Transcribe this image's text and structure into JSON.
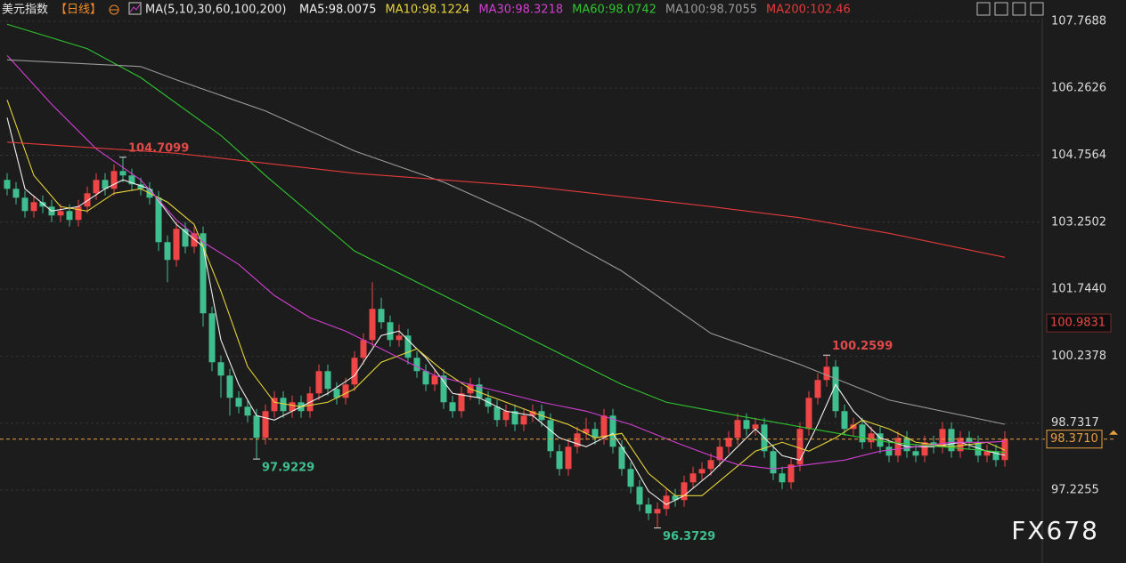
{
  "chart_data": {
    "type": "candlestick",
    "symbol": "美元指数",
    "period": "【日线】",
    "ma_group": "MA(5,10,30,60,100,200)",
    "watermark": "FX678",
    "up_color": "#ee4646",
    "down_color": "#3fbf8f",
    "ylim": [
      95.5855,
      108.2455
    ],
    "yticks": [
      107.7688,
      106.2626,
      104.7564,
      103.2502,
      {
        "value": 101.744,
        "label": "101.7440"
      },
      100.2378,
      98.7317,
      97.2255
    ],
    "grid": true,
    "open": [
      104.2,
      104.0,
      103.8,
      103.5,
      103.7,
      103.6,
      103.4,
      103.5,
      103.3,
      103.6,
      103.9,
      104.2,
      104.0,
      104.4,
      104.3,
      104.1,
      104.0,
      103.8,
      102.8,
      102.4,
      103.1,
      102.7,
      103.0,
      101.2,
      100.1,
      99.8,
      99.3,
      99.1,
      98.9,
      98.4,
      99.0,
      99.3,
      99.0,
      99.2,
      99.0,
      99.4,
      99.9,
      99.5,
      99.3,
      99.6,
      100.2,
      100.6,
      101.3,
      101.0,
      100.6,
      100.7,
      100.2,
      99.9,
      99.6,
      99.8,
      99.2,
      99.0,
      99.4,
      99.6,
      99.3,
      99.1,
      98.8,
      99.0,
      98.7,
      98.9,
      99.0,
      98.8,
      98.1,
      97.7,
      98.2,
      98.5,
      98.6,
      98.4,
      98.9,
      98.2,
      97.7,
      97.3,
      96.9,
      96.7,
      96.8,
      97.1,
      97.0,
      97.4,
      97.6,
      97.7,
      97.9,
      98.2,
      98.4,
      98.8,
      98.6,
      98.7,
      98.1,
      97.6,
      97.4,
      97.8,
      98.6,
      99.3,
      99.7,
      100.0,
      99.0,
      98.6,
      98.7,
      98.3,
      98.5,
      98.2,
      98.0,
      98.4,
      98.1,
      98.0,
      98.3,
      98.2,
      98.6,
      98.1,
      98.4,
      98.3,
      98.0,
      98.1,
      97.9
    ],
    "high": [
      104.35,
      104.15,
      103.95,
      103.85,
      103.85,
      103.75,
      103.65,
      103.65,
      103.75,
      104.05,
      104.35,
      104.35,
      104.55,
      104.7099,
      104.45,
      104.25,
      104.15,
      103.95,
      102.95,
      103.25,
      103.25,
      103.15,
      103.15,
      101.35,
      100.25,
      99.95,
      99.45,
      99.25,
      99.05,
      99.15,
      99.45,
      99.45,
      99.35,
      99.35,
      99.55,
      100.05,
      100.05,
      99.65,
      99.75,
      100.35,
      100.75,
      101.9,
      101.55,
      101.15,
      100.95,
      100.85,
      100.35,
      100.05,
      99.95,
      99.95,
      99.35,
      99.55,
      99.75,
      99.75,
      99.45,
      99.25,
      99.15,
      99.15,
      99.05,
      99.15,
      99.15,
      98.95,
      98.25,
      98.35,
      98.65,
      98.85,
      98.75,
      99.05,
      99.05,
      98.35,
      97.85,
      97.45,
      97.05,
      96.95,
      97.25,
      97.25,
      97.55,
      97.75,
      97.85,
      98.05,
      98.35,
      98.55,
      98.95,
      98.95,
      98.85,
      98.85,
      98.25,
      97.75,
      97.95,
      98.75,
      99.45,
      99.85,
      100.2599,
      100.15,
      99.15,
      98.85,
      98.85,
      98.65,
      98.65,
      98.35,
      98.55,
      98.55,
      98.25,
      98.45,
      98.45,
      98.75,
      98.75,
      98.55,
      98.55,
      98.45,
      98.25,
      98.25,
      98.55
    ],
    "low": [
      103.85,
      103.65,
      103.35,
      103.35,
      103.45,
      103.25,
      103.25,
      103.15,
      103.15,
      103.45,
      103.75,
      103.85,
      103.85,
      104.15,
      103.95,
      103.85,
      103.65,
      102.6,
      101.9,
      102.25,
      102.55,
      102.55,
      100.9,
      99.9,
      99.3,
      98.9,
      98.95,
      98.75,
      97.9229,
      98.25,
      98.85,
      98.85,
      98.85,
      98.85,
      98.85,
      99.25,
      99.35,
      99.15,
      99.15,
      99.45,
      100.05,
      100.45,
      100.85,
      100.45,
      100.45,
      100.05,
      99.75,
      99.45,
      99.45,
      99.05,
      98.85,
      98.85,
      99.25,
      99.15,
      98.95,
      98.65,
      98.65,
      98.55,
      98.55,
      98.75,
      98.65,
      97.95,
      97.55,
      97.55,
      98.05,
      98.35,
      98.25,
      98.25,
      98.05,
      97.55,
      97.15,
      96.75,
      96.55,
      96.3729,
      96.65,
      96.85,
      96.85,
      97.25,
      97.45,
      97.55,
      97.75,
      98.05,
      98.25,
      98.45,
      98.45,
      97.95,
      97.45,
      97.25,
      97.25,
      97.65,
      98.45,
      99.15,
      99.55,
      98.85,
      98.45,
      98.45,
      98.15,
      98.15,
      98.05,
      97.85,
      97.85,
      97.95,
      97.85,
      97.85,
      98.05,
      98.05,
      97.95,
      97.95,
      98.15,
      97.85,
      97.85,
      97.75,
      97.75
    ],
    "close": [
      104.0,
      103.8,
      103.5,
      103.7,
      103.6,
      103.4,
      103.5,
      103.3,
      103.6,
      103.9,
      104.2,
      104.0,
      104.4,
      104.3,
      104.1,
      104.0,
      103.8,
      102.8,
      102.4,
      103.1,
      102.7,
      103.0,
      101.2,
      100.1,
      99.8,
      99.3,
      99.1,
      98.9,
      98.4,
      99.0,
      99.3,
      99.0,
      99.2,
      99.0,
      99.4,
      99.9,
      99.5,
      99.3,
      99.6,
      100.2,
      100.6,
      101.3,
      101.0,
      100.6,
      100.7,
      100.2,
      99.9,
      99.6,
      99.8,
      99.2,
      99.0,
      99.4,
      99.6,
      99.3,
      99.1,
      98.8,
      99.0,
      98.7,
      98.9,
      99.0,
      98.8,
      98.1,
      97.7,
      98.2,
      98.5,
      98.6,
      98.4,
      98.9,
      98.2,
      97.7,
      97.3,
      96.9,
      96.7,
      96.8,
      97.1,
      97.0,
      97.4,
      97.6,
      97.7,
      97.9,
      98.2,
      98.4,
      98.8,
      98.6,
      98.7,
      98.1,
      97.6,
      97.4,
      97.8,
      98.6,
      99.3,
      99.7,
      100.0,
      99.0,
      98.6,
      98.7,
      98.3,
      98.5,
      98.2,
      98.0,
      98.4,
      98.1,
      98.0,
      98.3,
      98.2,
      98.6,
      98.1,
      98.4,
      98.3,
      98.0,
      98.1,
      97.9,
      98.371
    ],
    "series": [
      {
        "name": "MA5",
        "label": "MA5:98.0075",
        "color": "#f0f0f0",
        "x": [
          0,
          2,
          5,
          8,
          11,
          13,
          16,
          19,
          22,
          24,
          26,
          28,
          30,
          33,
          36,
          39,
          42,
          44,
          47,
          50,
          53,
          56,
          59,
          62,
          65,
          68,
          70,
          72,
          74,
          76,
          79,
          82,
          84,
          87,
          89,
          91,
          93,
          95,
          98,
          101,
          104,
          107,
          110,
          112
        ],
        "values": [
          105.6,
          104.0,
          103.5,
          103.6,
          104.0,
          104.2,
          104.0,
          103.2,
          102.7,
          100.6,
          99.6,
          98.9,
          98.8,
          99.1,
          99.4,
          99.8,
          100.7,
          100.8,
          100.2,
          99.4,
          99.3,
          99.0,
          98.9,
          98.4,
          98.2,
          98.5,
          97.9,
          97.2,
          96.9,
          97.1,
          97.6,
          98.2,
          98.6,
          98.0,
          97.9,
          98.7,
          99.6,
          99.0,
          98.4,
          98.2,
          98.2,
          98.3,
          98.1,
          98.0075
        ]
      },
      {
        "name": "MA10",
        "label": "MA10:98.1224",
        "color": "#e6d33a",
        "x": [
          0,
          3,
          6,
          9,
          12,
          15,
          18,
          21,
          24,
          27,
          30,
          33,
          36,
          39,
          42,
          46,
          49,
          52,
          56,
          60,
          63,
          66,
          69,
          72,
          75,
          78,
          81,
          84,
          87,
          90,
          93,
          96,
          99,
          102,
          106,
          110,
          112
        ],
        "values": [
          106.0,
          104.3,
          103.6,
          103.5,
          103.9,
          104.0,
          103.7,
          103.2,
          101.7,
          100.0,
          99.2,
          99.1,
          99.2,
          99.5,
          100.1,
          100.4,
          99.9,
          99.5,
          99.2,
          98.9,
          98.7,
          98.4,
          98.5,
          97.6,
          97.1,
          97.1,
          97.6,
          98.1,
          98.3,
          98.1,
          98.4,
          98.8,
          98.6,
          98.3,
          98.2,
          98.3,
          98.1224
        ]
      },
      {
        "name": "MA30",
        "label": "MA30:98.3218",
        "color": "#d23fd2",
        "x": [
          0,
          5,
          10,
          15,
          19,
          22,
          26,
          30,
          34,
          38,
          40,
          44,
          48,
          52,
          56,
          60,
          65,
          70,
          75,
          79,
          82,
          86,
          90,
          94,
          98,
          102,
          106,
          110,
          112
        ],
        "values": [
          107.0,
          105.9,
          104.9,
          104.2,
          103.3,
          102.8,
          102.3,
          101.6,
          101.1,
          100.8,
          100.6,
          100.2,
          99.8,
          99.6,
          99.4,
          99.2,
          99.0,
          98.7,
          98.3,
          98.0,
          97.8,
          97.7,
          97.8,
          97.9,
          98.1,
          98.2,
          98.3,
          98.3,
          98.3218
        ]
      },
      {
        "name": "MA60",
        "label": "MA60:98.0742",
        "color": "#2fc42f",
        "x": [
          0,
          9,
          15,
          24,
          29,
          39,
          49,
          59,
          69,
          74,
          82,
          89,
          99,
          112
        ],
        "values": [
          107.7,
          107.15,
          106.5,
          105.2,
          104.3,
          102.6,
          101.6,
          100.6,
          99.6,
          99.2,
          98.9,
          98.65,
          98.3,
          98.0742
        ]
      },
      {
        "name": "MA100",
        "label": "MA100:98.7055",
        "color": "#9a9a9a",
        "x": [
          0,
          15,
          19,
          29,
          39,
          49,
          59,
          69,
          79,
          89,
          99,
          112
        ],
        "values": [
          106.9,
          106.75,
          106.45,
          105.75,
          104.85,
          104.15,
          103.25,
          102.15,
          100.75,
          100.05,
          99.25,
          98.7055
        ]
      },
      {
        "name": "MA200",
        "label": "MA200:102.46",
        "color": "#e43a3a",
        "x": [
          0,
          19,
          39,
          59,
          79,
          89,
          99,
          112
        ],
        "values": [
          105.05,
          104.8,
          104.35,
          104.05,
          103.6,
          103.35,
          103.0,
          102.46
        ]
      }
    ],
    "extremes": [
      {
        "index": 13,
        "value": 104.7099,
        "color": "#e04a4a",
        "side": "above"
      },
      {
        "index": 28,
        "value": 97.9229,
        "color": "#3fbf8f",
        "side": "below"
      },
      {
        "index": 92,
        "value": 100.2599,
        "color": "#e04a4a",
        "side": "above"
      },
      {
        "index": 73,
        "value": 96.3729,
        "color": "#3fbf8f",
        "side": "below"
      }
    ],
    "last_price": {
      "value": 98.371,
      "label": "98.3710",
      "color": "#e8a040"
    },
    "marker_price": 100.9831
  }
}
